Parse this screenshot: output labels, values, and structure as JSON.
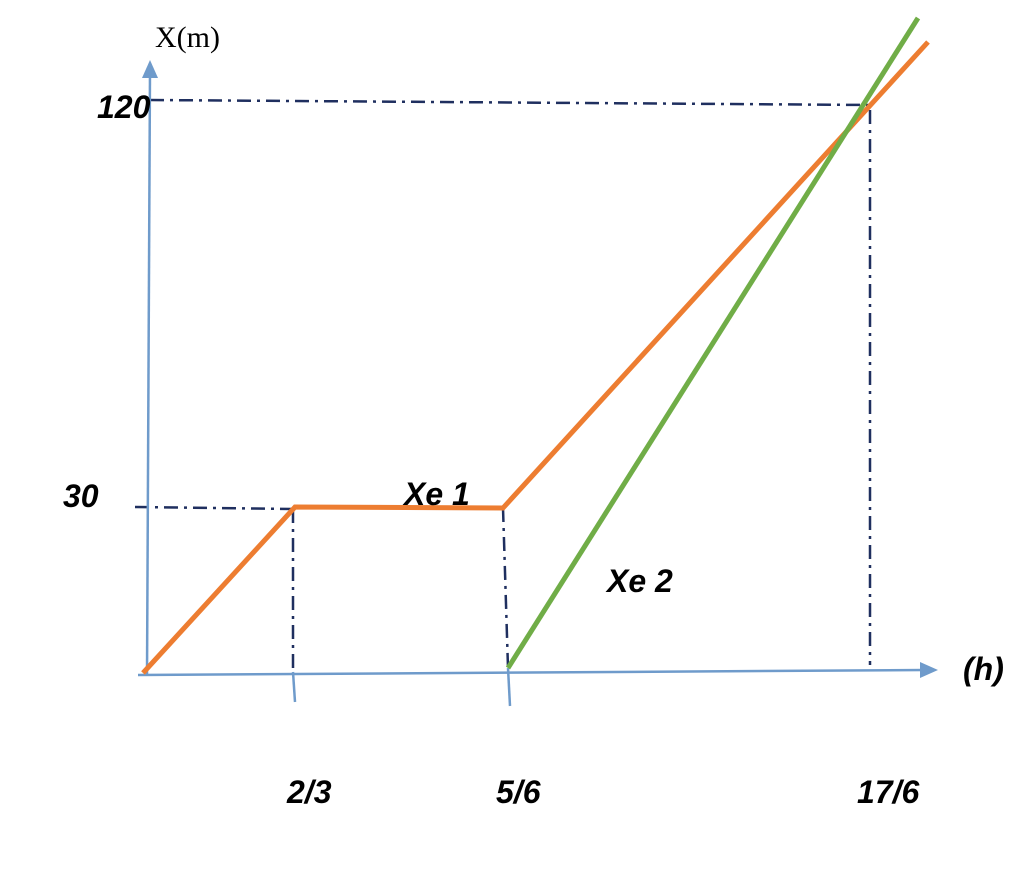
{
  "y_axis_label": "X(m)",
  "x_axis_label": "(h)",
  "y_labels": [
    "120",
    "30"
  ],
  "x_labels": [
    "2/3",
    "5/6",
    "17/6"
  ],
  "series_labels": [
    "Xe 1",
    "Xe 2"
  ]
}
